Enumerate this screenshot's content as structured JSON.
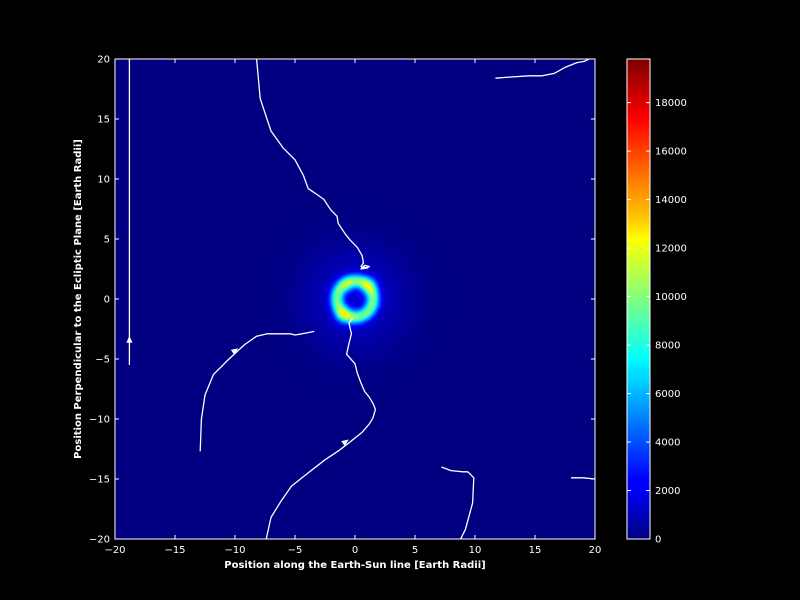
{
  "chart_data": {
    "type": "heatmap",
    "title": "",
    "xlabel": "Position along the Earth-Sun line [Earth Radii]",
    "ylabel": "Position Perpendicular to the Ecliptic Plane [Earth Radii]",
    "xlim": [
      -20,
      20
    ],
    "ylim": [
      -20,
      20
    ],
    "xticks": [
      -20,
      -15,
      -10,
      -5,
      0,
      5,
      10,
      15,
      20
    ],
    "yticks": [
      -20,
      -15,
      -10,
      -5,
      0,
      5,
      10,
      15,
      20
    ],
    "grid": false,
    "colormap": "jet",
    "background_color": "#000000",
    "foreground_color": "#ffffff",
    "colorbar": {
      "range": [
        0,
        19800
      ],
      "ticks": [
        0,
        2000,
        4000,
        6000,
        8000,
        10000,
        12000,
        14000,
        16000,
        18000
      ]
    },
    "intensity_features": [
      {
        "name": "ring",
        "center": [
          0,
          0
        ],
        "radius": 1.5,
        "width": 0.55,
        "peak": 8500
      },
      {
        "name": "lobe",
        "center": [
          1.2,
          1.2
        ],
        "sigma": 0.5,
        "peak": 3000
      },
      {
        "name": "lobe",
        "center": [
          -1.0,
          -1.4
        ],
        "sigma": 0.5,
        "peak": 3500
      },
      {
        "name": "lobe",
        "center": [
          -0.6,
          1.1
        ],
        "sigma": 0.4,
        "peak": 2000
      },
      {
        "name": "halo",
        "center": [
          0,
          0
        ],
        "sigma": 3.0,
        "peak": 1600
      }
    ],
    "field_lines": [
      {
        "points": [
          [
            -18.8,
            20
          ],
          [
            -18.8,
            -5.5
          ]
        ],
        "arrow_at": [
          -18.8,
          -3.4
        ],
        "arrow_dir": "up"
      },
      {
        "points": [
          [
            -8.2,
            20
          ],
          [
            -7.9,
            16.7
          ],
          [
            -7.0,
            14.0
          ],
          [
            -6.0,
            12.6
          ],
          [
            -5.0,
            11.6
          ],
          [
            -4.3,
            10.3
          ],
          [
            -3.9,
            9.2
          ],
          [
            -3.3,
            8.8
          ],
          [
            -2.6,
            8.3
          ],
          [
            -2.0,
            7.4
          ],
          [
            -1.5,
            6.9
          ],
          [
            -1.4,
            6.3
          ],
          [
            -0.8,
            5.4
          ],
          [
            -0.4,
            4.9
          ],
          [
            0.2,
            4.3
          ],
          [
            0.6,
            3.6
          ],
          [
            0.7,
            3.0
          ],
          [
            0.5,
            2.7
          ],
          [
            0.9,
            2.6
          ],
          [
            1.2,
            2.7
          ],
          [
            0.8,
            2.8
          ],
          [
            0.5,
            2.5
          ],
          [
            1.1,
            2.6
          ]
        ],
        "arrow_at": null,
        "arrow_dir": null
      },
      {
        "points": [
          [
            -12.9,
            -12.7
          ],
          [
            -12.8,
            -10.0
          ],
          [
            -12.5,
            -8.0
          ],
          [
            -11.8,
            -6.3
          ],
          [
            -10.5,
            -5.0
          ],
          [
            -9.2,
            -3.8
          ],
          [
            -8.2,
            -3.1
          ],
          [
            -7.3,
            -2.9
          ],
          [
            -6.0,
            -2.9
          ],
          [
            -5.4,
            -2.9
          ],
          [
            -5.0,
            -3.0
          ],
          [
            -4.4,
            -2.9
          ],
          [
            -3.9,
            -2.8
          ],
          [
            -3.4,
            -2.7
          ]
        ],
        "arrow_at": [
          -10.0,
          -4.3
        ],
        "arrow_dir": "up-right"
      },
      {
        "points": [
          [
            -7.4,
            -20
          ],
          [
            -7.0,
            -18.2
          ],
          [
            -6.2,
            -16.9
          ],
          [
            -5.3,
            -15.6
          ],
          [
            -4.3,
            -14.8
          ],
          [
            -3.4,
            -14.1
          ],
          [
            -2.5,
            -13.4
          ],
          [
            -1.3,
            -12.6
          ],
          [
            -0.4,
            -11.9
          ],
          [
            0.6,
            -11.1
          ],
          [
            1.2,
            -10.4
          ],
          [
            1.5,
            -9.9
          ],
          [
            1.7,
            -9.2
          ],
          [
            1.5,
            -8.7
          ],
          [
            1.2,
            -8.2
          ],
          [
            0.8,
            -7.7
          ],
          [
            0.5,
            -7.0
          ],
          [
            0.2,
            -6.2
          ],
          [
            0.0,
            -5.4
          ],
          [
            -0.7,
            -4.6
          ],
          [
            -0.5,
            -3.7
          ],
          [
            -0.3,
            -2.9
          ],
          [
            -0.5,
            -2.0
          ],
          [
            -0.2,
            -1.6
          ]
        ],
        "arrow_at": [
          -0.8,
          -11.9
        ],
        "arrow_dir": "up-right"
      },
      {
        "points": [
          [
            7.2,
            -14.0
          ],
          [
            8.0,
            -14.3
          ],
          [
            9.0,
            -14.4
          ],
          [
            9.4,
            -14.4
          ],
          [
            9.9,
            -14.9
          ],
          [
            9.8,
            -17.0
          ],
          [
            9.2,
            -19.2
          ],
          [
            8.8,
            -20.0
          ]
        ],
        "arrow_at": null,
        "arrow_dir": null
      },
      {
        "points": [
          [
            11.7,
            18.4
          ],
          [
            13.0,
            18.5
          ],
          [
            14.5,
            18.6
          ],
          [
            15.6,
            18.6
          ],
          [
            16.6,
            18.8
          ],
          [
            17.5,
            19.3
          ],
          [
            18.5,
            19.7
          ],
          [
            19.1,
            19.8
          ],
          [
            19.5,
            20.0
          ]
        ],
        "arrow_at": null,
        "arrow_dir": null
      },
      {
        "points": [
          [
            18.0,
            -14.9
          ],
          [
            19.0,
            -14.9
          ],
          [
            20.0,
            -15.0
          ]
        ],
        "arrow_at": null,
        "arrow_dir": null
      }
    ]
  }
}
